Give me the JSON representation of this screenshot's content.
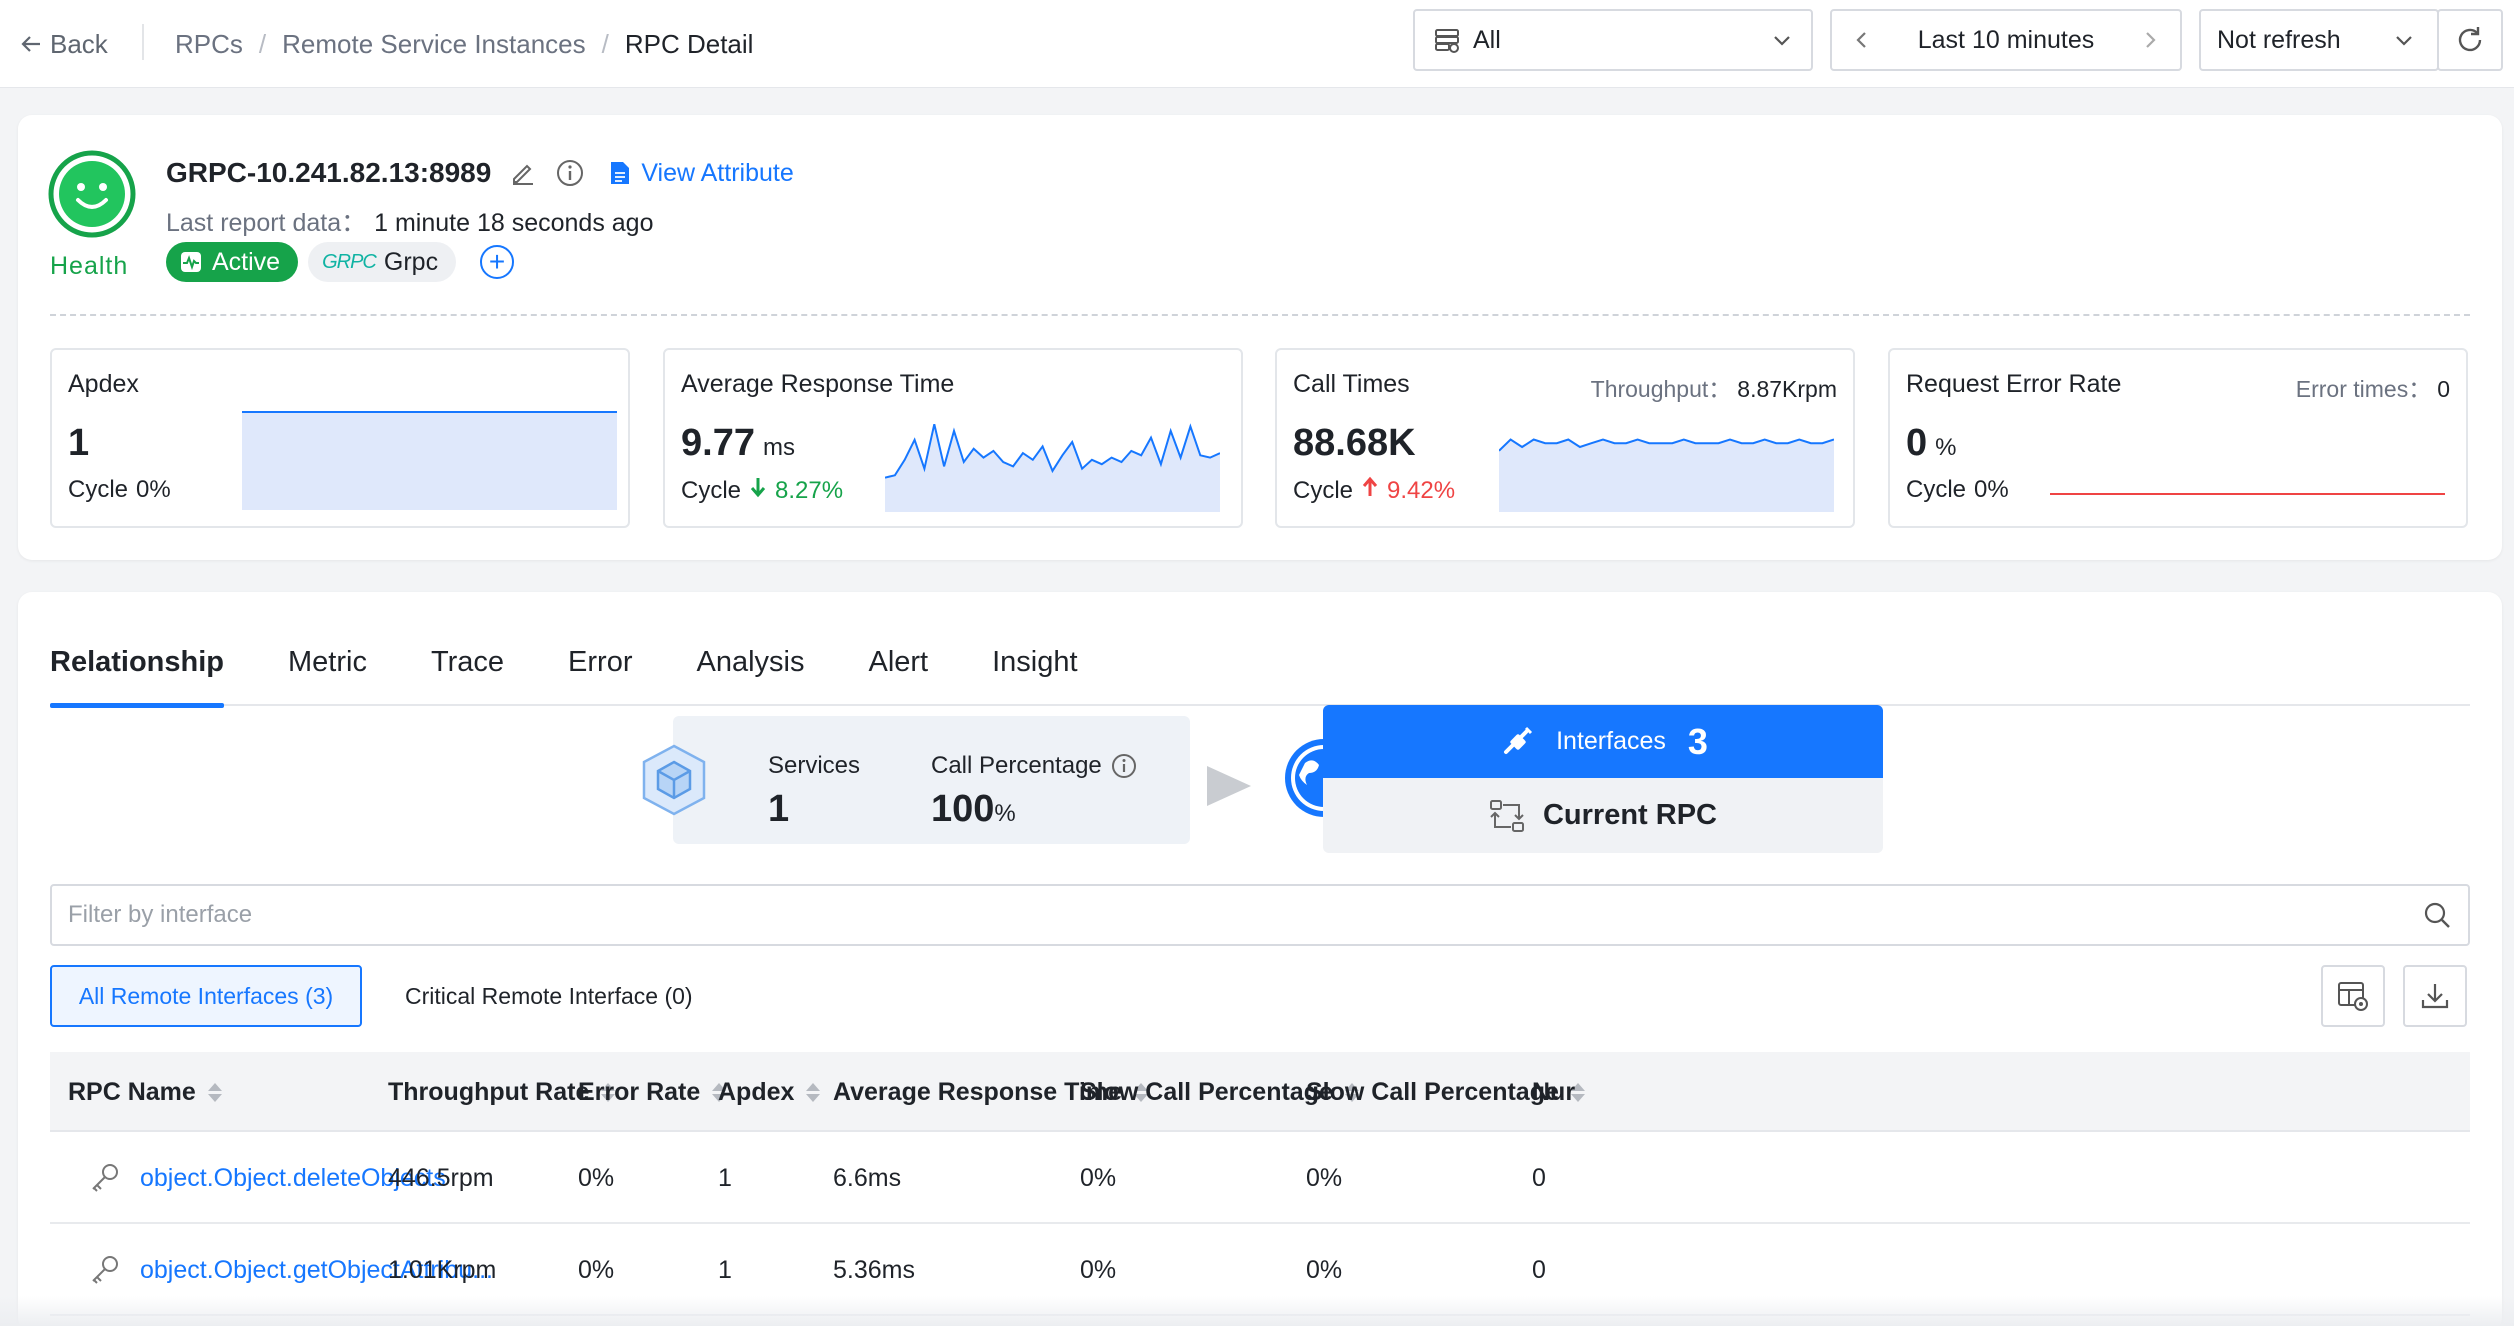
{
  "topbar": {
    "back_label": "Back",
    "breadcrumb": [
      "RPCs",
      "Remote Service Instances",
      "RPC Detail"
    ],
    "scope_select": "All",
    "time_range": "Last 10 minutes",
    "refresh_select": "Not refresh"
  },
  "instance": {
    "health_label": "Health",
    "title": "GRPC-10.241.82.13:8989",
    "view_attribute": "View Attribute",
    "last_report_label": "Last report data：",
    "last_report_value": "1 minute 18 seconds ago",
    "status_tag": "Active",
    "type_logo": "GRPC",
    "type_tag": "Grpc",
    "colors": {
      "health": "#16a34a",
      "accent": "#1677ff",
      "down": "#16a34a",
      "up": "#ef4444"
    }
  },
  "metrics": {
    "apdex": {
      "title": "Apdex",
      "value": "1",
      "cycle_label": "Cycle",
      "cycle": "0%",
      "series": [
        1,
        1,
        1,
        1,
        1,
        1,
        1,
        1,
        1,
        1
      ]
    },
    "avg_response": {
      "title": "Average Response Time",
      "value": "9.77",
      "unit": "ms",
      "cycle_label": "Cycle",
      "cycle": "8.27%",
      "cycle_direction": "down",
      "series": [
        8.5,
        8.6,
        9.3,
        10.2,
        8.9,
        10.9,
        9.0,
        10.6,
        9.2,
        9.8,
        9.4,
        9.7,
        9.2,
        9.0,
        9.6,
        9.3,
        9.9,
        8.8,
        9.5,
        10.1,
        8.9,
        9.3,
        9.1,
        9.4,
        9.2,
        9.7,
        9.5,
        10.3,
        9.1,
        10.6,
        9.4,
        10.8,
        9.5,
        9.4,
        9.6
      ]
    },
    "call_times": {
      "title": "Call Times",
      "right_label": "Throughput：",
      "right_value": "8.87Krpm",
      "value": "88.68K",
      "cycle_label": "Cycle",
      "cycle": "9.42%",
      "cycle_direction": "up",
      "series": [
        8.6,
        8.9,
        8.7,
        8.9,
        8.8,
        8.8,
        8.9,
        8.7,
        8.8,
        8.9,
        8.8,
        8.8,
        8.9,
        8.8,
        8.8,
        8.8,
        8.9,
        8.8,
        8.8,
        8.8,
        8.9,
        8.8,
        8.8,
        8.9,
        8.8,
        8.8,
        8.9,
        8.8,
        8.8,
        8.9
      ]
    },
    "error_rate": {
      "title": "Request Error Rate",
      "right_label": "Error times：",
      "right_value": "0",
      "value": "0",
      "unit": "%",
      "cycle_label": "Cycle",
      "cycle": "0%",
      "series": [
        0,
        0,
        0,
        0,
        0,
        0,
        0,
        0,
        0,
        0
      ]
    }
  },
  "tabs": [
    "Relationship",
    "Metric",
    "Trace",
    "Error",
    "Analysis",
    "Alert",
    "Insight"
  ],
  "flow": {
    "services_label": "Services",
    "services_value": "1",
    "call_pct_label": "Call Percentage",
    "call_pct_value": "100",
    "call_pct_unit": "%",
    "interfaces_label": "Interfaces",
    "interfaces_count": "3",
    "current_label": "Current RPC"
  },
  "filter": {
    "placeholder": "Filter by interface",
    "value": ""
  },
  "subtabs": {
    "all": "All Remote Interfaces (3)",
    "critical": "Critical Remote Interface (0)"
  },
  "table": {
    "columns": [
      "RPC Name",
      "Throughput Rate",
      "Error Rate",
      "Apdex",
      "Average Response Time",
      "Slow Call Percentage",
      "Slow Call Percentage",
      "Nur"
    ],
    "rows": [
      [
        "object.Object.deleteObjects",
        "446.5rpm",
        "0%",
        "1",
        "6.6ms",
        "0%",
        "0%",
        "0"
      ],
      [
        "object.Object.getObjectAttribu...",
        "1.01Krpm",
        "0%",
        "1",
        "5.36ms",
        "0%",
        "0%",
        "0"
      ]
    ]
  }
}
